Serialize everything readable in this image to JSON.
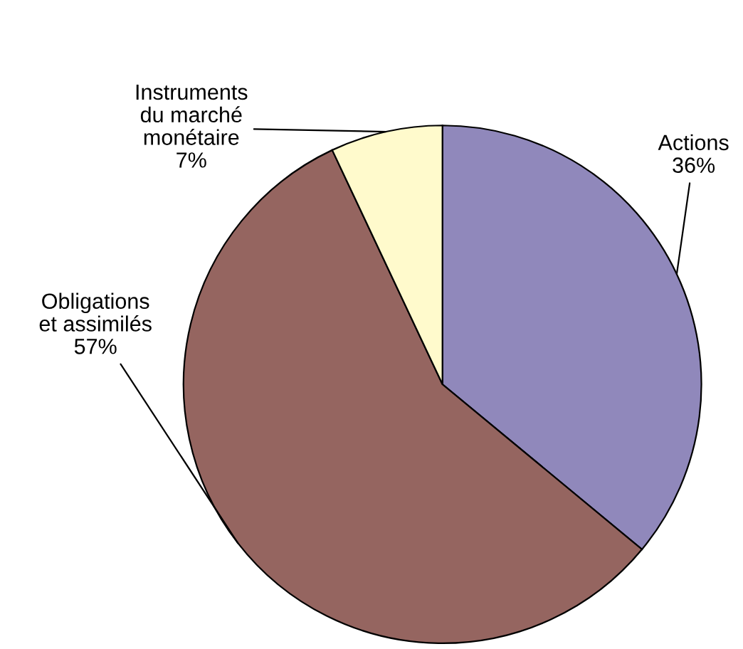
{
  "chart_data": {
    "type": "pie",
    "categories": [
      "Actions",
      "Obligations\net assimilés",
      "Instruments\ndu marché\nmonétaire"
    ],
    "values": [
      36,
      57,
      7
    ],
    "colors": [
      "#9088bb",
      "#956560",
      "#fffacc"
    ],
    "value_labels": [
      "36%",
      "57%",
      "7%"
    ]
  }
}
